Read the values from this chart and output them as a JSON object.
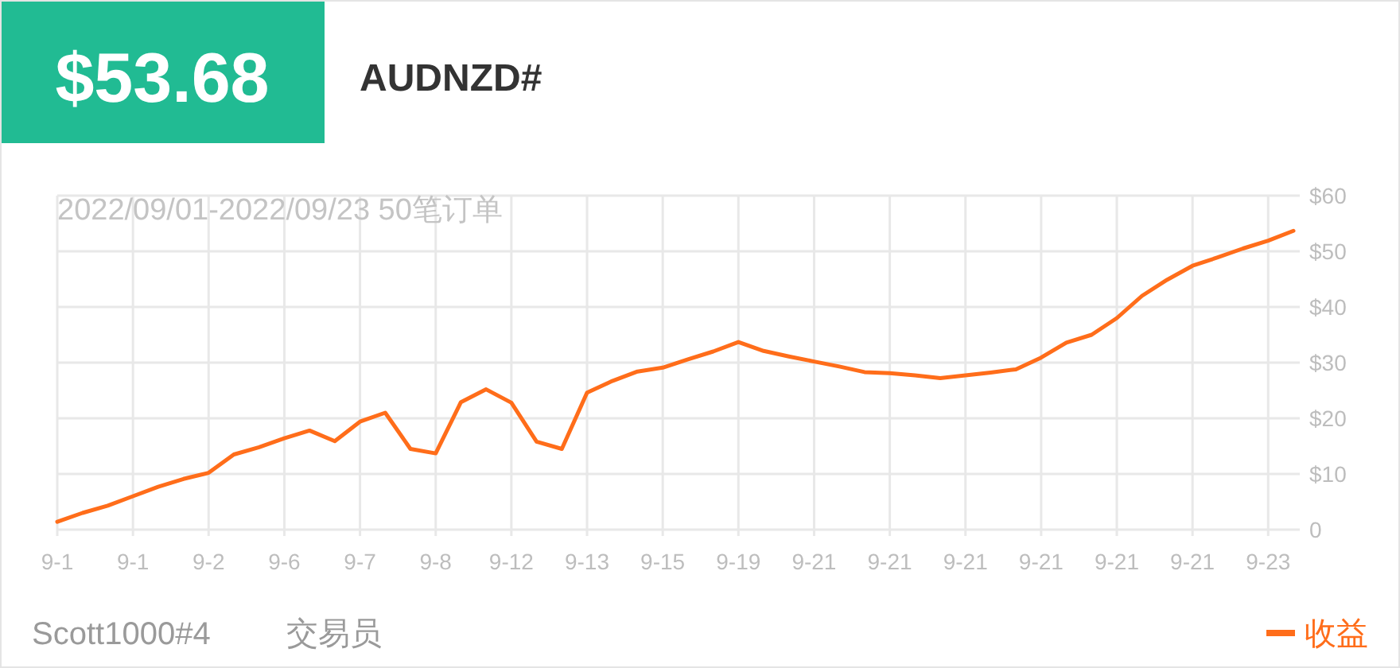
{
  "chart_data": {
    "type": "line",
    "title": "AUDNZD#",
    "subtitle": "2022/09/01-2022/09/23 50笔订单",
    "annotations": [
      "$53.68",
      "Scott1000#4",
      "交易员"
    ],
    "categories": [
      "9-1",
      null,
      null,
      "9-1",
      null,
      null,
      "9-2",
      null,
      null,
      "9-6",
      null,
      null,
      "9-7",
      null,
      null,
      "9-8",
      null,
      null,
      "9-12",
      null,
      null,
      "9-13",
      null,
      null,
      "9-15",
      null,
      null,
      "9-19",
      null,
      null,
      "9-21",
      null,
      null,
      "9-21",
      null,
      null,
      "9-21",
      null,
      null,
      "9-21",
      null,
      null,
      "9-21",
      null,
      null,
      "9-21",
      null,
      null,
      "9-23",
      null
    ],
    "series": [
      {
        "name": "收益",
        "color": "#ff6d1a",
        "values": [
          1.4,
          3.0,
          4.3,
          6.0,
          7.7,
          9.1,
          10.2,
          13.5,
          14.8,
          16.4,
          17.8,
          15.9,
          19.4,
          21.0,
          14.5,
          13.7,
          22.9,
          25.2,
          22.8,
          15.8,
          14.5,
          24.6,
          26.7,
          28.4,
          29.1,
          30.6,
          32.0,
          33.7,
          32.1,
          31.1,
          30.2,
          29.3,
          28.3,
          28.1,
          27.7,
          27.2,
          27.7,
          28.2,
          28.8,
          30.9,
          33.6,
          35.0,
          38.0,
          42.0,
          44.9,
          47.4,
          48.9,
          50.5,
          51.9,
          53.68
        ]
      }
    ],
    "ylim": [
      0,
      60
    ],
    "yticks": [
      {
        "value": 0,
        "label": "0"
      },
      {
        "value": 10,
        "label": "$10"
      },
      {
        "value": 20,
        "label": "$20"
      },
      {
        "value": 30,
        "label": "$30"
      },
      {
        "value": 40,
        "label": "$40"
      },
      {
        "value": 50,
        "label": "$50"
      },
      {
        "value": 60,
        "label": "$60"
      }
    ],
    "grid": true,
    "legend": "bottom right"
  }
}
